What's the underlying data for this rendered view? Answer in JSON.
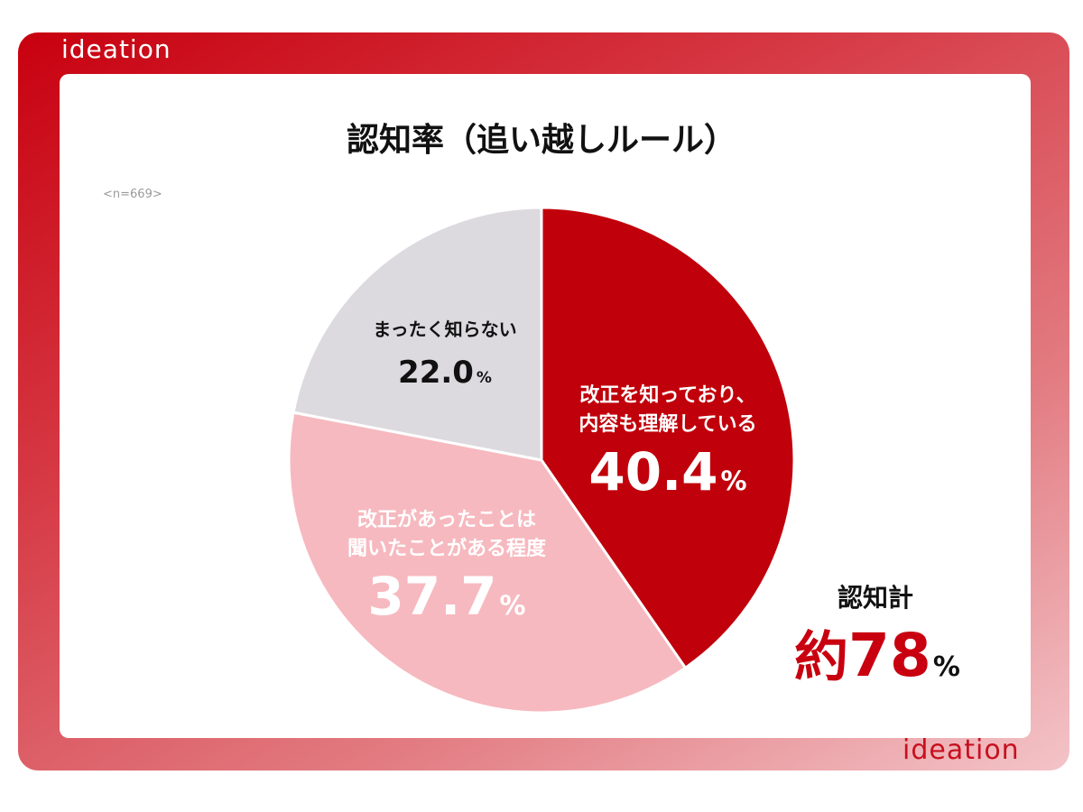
{
  "brand": {
    "logo_top": "ideation",
    "logo_bottom": "ideation"
  },
  "chart_data": {
    "type": "pie",
    "title": "認知率（追い越しルール）",
    "sample_size": "<n=669>",
    "slices": [
      {
        "label_lines": [
          "改正を知っており、",
          "内容も理解している"
        ],
        "value": 40.4,
        "value_text": "40.4",
        "color": "#c0000b",
        "text_color": "#ffffff"
      },
      {
        "label_lines": [
          "改正があったことは",
          "聞いたことがある程度"
        ],
        "value": 37.7,
        "value_text": "37.7",
        "color": "#f6b9bf",
        "text_color": "#ffffff"
      },
      {
        "label_lines": [
          "まったく知らない"
        ],
        "value": 22.0,
        "value_text": "22.0",
        "color": "#dcdade",
        "text_color": "#111111"
      }
    ],
    "percent_sign": "%",
    "total": {
      "label": "認知計",
      "prefix": "約",
      "value": "78",
      "unit": "%"
    }
  }
}
